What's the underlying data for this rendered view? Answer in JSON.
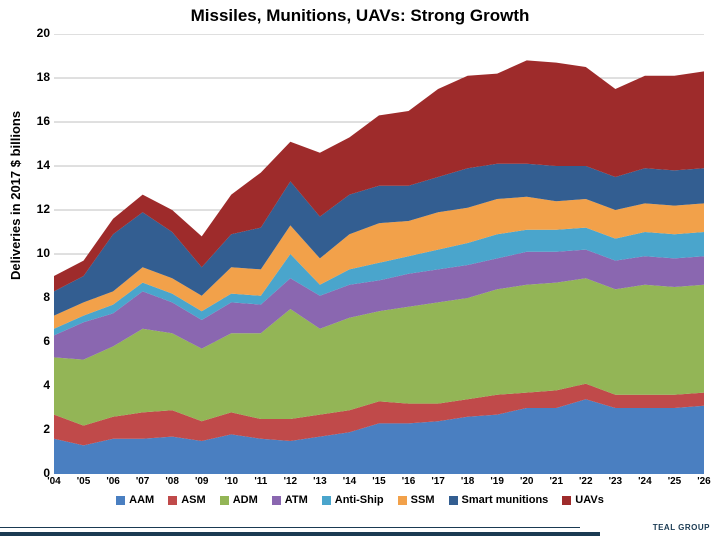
{
  "chart": {
    "type": "stacked-area",
    "title": "Missiles, Munitions, UAVs: Strong Growth",
    "title_fontsize": 17,
    "ylabel": "Deliveries in 2017 $ billions",
    "ylabel_fontsize": 13,
    "background_color": "#ffffff",
    "grid_color": "#808080",
    "grid_width": 0.5,
    "ylim": [
      0,
      20
    ],
    "ytick_step": 2,
    "yticks": [
      0,
      2,
      4,
      6,
      8,
      10,
      12,
      14,
      16,
      18,
      20
    ],
    "ytick_fontsize": 12,
    "xtick_fontsize": 10,
    "legend_fontsize": 11,
    "categories": [
      "'04",
      "'05",
      "'06",
      "'07",
      "'08",
      "'09",
      "'10",
      "'11",
      "'12",
      "'13",
      "'14",
      "'15",
      "'16",
      "'17",
      "'18",
      "'19",
      "'20",
      "'21",
      "'22",
      "'23",
      "'24",
      "'25",
      "'26"
    ],
    "series": [
      {
        "name": "AAM",
        "color": "#4a7fc1",
        "values": [
          1.6,
          1.3,
          1.6,
          1.6,
          1.7,
          1.5,
          1.8,
          1.6,
          1.5,
          1.7,
          1.9,
          2.3,
          2.3,
          2.4,
          2.6,
          2.7,
          3.0,
          3.0,
          3.4,
          3.0,
          3.0,
          3.0,
          3.1
        ]
      },
      {
        "name": "ASM",
        "color": "#c04a4a",
        "values": [
          1.1,
          0.9,
          1.0,
          1.2,
          1.2,
          0.9,
          1.0,
          0.9,
          1.0,
          1.0,
          1.0,
          1.0,
          0.9,
          0.8,
          0.8,
          0.9,
          0.7,
          0.8,
          0.7,
          0.6,
          0.6,
          0.6,
          0.6
        ]
      },
      {
        "name": "ADM",
        "color": "#93b556",
        "values": [
          2.6,
          3.0,
          3.2,
          3.8,
          3.5,
          3.3,
          3.6,
          3.9,
          5.0,
          3.9,
          4.2,
          4.1,
          4.4,
          4.6,
          4.6,
          4.8,
          4.9,
          4.9,
          4.8,
          4.8,
          5.0,
          4.9,
          4.9
        ]
      },
      {
        "name": "ATM",
        "color": "#8a67b0",
        "values": [
          1.0,
          1.7,
          1.5,
          1.7,
          1.4,
          1.3,
          1.4,
          1.3,
          1.4,
          1.5,
          1.5,
          1.4,
          1.5,
          1.5,
          1.5,
          1.4,
          1.5,
          1.4,
          1.3,
          1.3,
          1.3,
          1.3,
          1.3
        ]
      },
      {
        "name": "Anti-Ship",
        "color": "#4aa5cc",
        "values": [
          0.3,
          0.3,
          0.4,
          0.4,
          0.4,
          0.4,
          0.4,
          0.4,
          1.1,
          0.5,
          0.7,
          0.8,
          0.8,
          0.9,
          1.0,
          1.1,
          1.0,
          1.0,
          1.0,
          1.0,
          1.1,
          1.1,
          1.1
        ]
      },
      {
        "name": "SSM",
        "color": "#f2a14a",
        "values": [
          0.6,
          0.6,
          0.6,
          0.7,
          0.7,
          0.7,
          1.2,
          1.2,
          1.3,
          1.2,
          1.6,
          1.8,
          1.6,
          1.7,
          1.6,
          1.6,
          1.5,
          1.3,
          1.3,
          1.3,
          1.3,
          1.3,
          1.3
        ]
      },
      {
        "name": "Smart munitions",
        "color": "#335e91",
        "values": [
          1.1,
          1.2,
          2.6,
          2.5,
          2.1,
          1.3,
          1.5,
          1.9,
          2.0,
          1.9,
          1.8,
          1.7,
          1.6,
          1.6,
          1.8,
          1.6,
          1.5,
          1.6,
          1.5,
          1.5,
          1.6,
          1.6,
          1.6
        ]
      },
      {
        "name": "UAVs",
        "color": "#9e2b2b",
        "values": [
          0.7,
          0.7,
          0.7,
          0.8,
          1.0,
          1.4,
          1.8,
          2.5,
          1.8,
          2.9,
          2.6,
          3.2,
          3.4,
          4.0,
          4.2,
          4.1,
          4.7,
          4.7,
          4.5,
          4.0,
          4.2,
          4.3,
          4.4
        ]
      }
    ]
  },
  "footer": {
    "logo_text": "TEAL GROUP"
  }
}
